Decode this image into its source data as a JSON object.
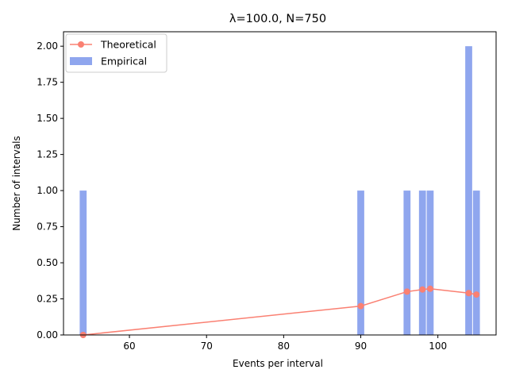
{
  "chart_data": {
    "type": "bar",
    "title": "λ=100.0, N=750",
    "xlabel": "Events per interval",
    "ylabel": "Number of intervals",
    "xlim": [
      51.45,
      107.55
    ],
    "ylim": [
      0,
      2.1
    ],
    "x_ticks": [
      60,
      70,
      80,
      90,
      100
    ],
    "y_ticks": [
      "0.00",
      "0.25",
      "0.50",
      "0.75",
      "1.00",
      "1.25",
      "1.50",
      "1.75",
      "2.00"
    ],
    "bar_width": 0.9,
    "legend_position": "upper-left",
    "grid": false,
    "series": [
      {
        "name": "Theoretical",
        "kind": "line",
        "marker": "circle",
        "color": "#FA8072",
        "x": [
          54,
          90,
          96,
          98,
          99,
          104,
          105
        ],
        "y": [
          0.0,
          0.2,
          0.3,
          0.315,
          0.32,
          0.29,
          0.28
        ]
      },
      {
        "name": "Empirical",
        "kind": "bar",
        "color": "#8FA6EE",
        "x": [
          54,
          90,
          96,
          98,
          99,
          104,
          105
        ],
        "y": [
          1,
          1,
          1,
          1,
          1,
          2,
          1
        ]
      }
    ]
  }
}
